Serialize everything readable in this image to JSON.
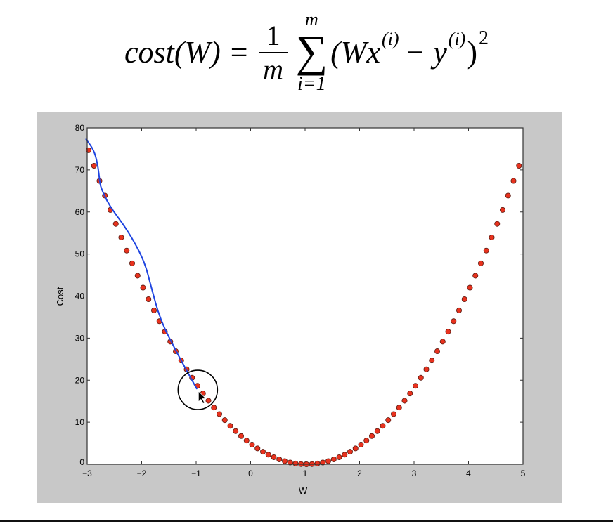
{
  "formula": {
    "lhs": "cost(W) =",
    "frac_num": "1",
    "frac_den": "m",
    "sum_symbol": "∑",
    "sum_upper": "m",
    "sum_lower": "i=1",
    "term_open": "(Wx",
    "sup_i1": "(i)",
    "term_minus": "− y",
    "sup_i2": "(i)",
    "term_close": ")",
    "power": "2"
  },
  "chart_data": {
    "type": "scatter",
    "title": "",
    "xlabel": "W",
    "ylabel": "Cost",
    "xlim": [
      -3,
      5
    ],
    "ylim": [
      0,
      80
    ],
    "xticks": [
      -3,
      -2,
      -1,
      0,
      1,
      2,
      3,
      4,
      5
    ],
    "xtick_labels": [
      "−3",
      "−2",
      "−1",
      "0",
      "1",
      "2",
      "3",
      "4",
      "5"
    ],
    "yticks": [
      0,
      10,
      20,
      30,
      40,
      50,
      60,
      70,
      80
    ],
    "ytick_labels": [
      "0",
      "10",
      "20",
      "30",
      "40",
      "50",
      "60",
      "70",
      "80"
    ],
    "grid": false,
    "marker_color": "#e8321e",
    "x": [
      -3.0,
      -2.9,
      -2.8,
      -2.7,
      -2.6,
      -2.5,
      -2.4,
      -2.3,
      -2.2,
      -2.1,
      -2.0,
      -1.9,
      -1.8,
      -1.7,
      -1.6,
      -1.5,
      -1.4,
      -1.3,
      -1.2,
      -1.1,
      -1.0,
      -0.9,
      -0.8,
      -0.7,
      -0.6,
      -0.5,
      -0.4,
      -0.3,
      -0.2,
      -0.1,
      0.0,
      0.1,
      0.2,
      0.3,
      0.4,
      0.5,
      0.6,
      0.7,
      0.8,
      0.9,
      1.0,
      1.1,
      1.2,
      1.3,
      1.4,
      1.5,
      1.6,
      1.7,
      1.8,
      1.9,
      2.0,
      2.1,
      2.2,
      2.3,
      2.4,
      2.5,
      2.6,
      2.7,
      2.8,
      2.9,
      3.0,
      3.1,
      3.2,
      3.3,
      3.4,
      3.5,
      3.6,
      3.7,
      3.8,
      3.9,
      4.0,
      4.1,
      4.2,
      4.3,
      4.4,
      4.5,
      4.6,
      4.7,
      4.8,
      4.9
    ],
    "y": [
      74.67,
      70.98,
      67.39,
      63.89,
      60.48,
      57.17,
      53.95,
      50.82,
      47.79,
      44.85,
      42.0,
      39.25,
      36.59,
      34.02,
      31.55,
      29.17,
      26.88,
      24.69,
      22.59,
      20.58,
      18.67,
      16.85,
      15.12,
      13.49,
      11.95,
      10.5,
      9.15,
      7.89,
      6.72,
      5.65,
      4.67,
      3.78,
      2.99,
      2.29,
      1.68,
      1.17,
      0.75,
      0.42,
      0.19,
      0.05,
      0.0,
      0.05,
      0.19,
      0.42,
      0.75,
      1.17,
      1.68,
      2.29,
      2.99,
      3.78,
      4.67,
      5.65,
      6.72,
      7.89,
      9.15,
      10.5,
      11.95,
      13.49,
      15.12,
      16.85,
      18.67,
      20.58,
      22.59,
      24.69,
      26.88,
      29.17,
      31.55,
      34.02,
      36.59,
      39.25,
      42.0,
      44.85,
      47.79,
      50.82,
      53.95,
      57.17,
      60.48,
      63.89,
      67.39,
      70.98
    ],
    "annotation": {
      "stroke_color": "#1f45e0",
      "hand_drawn_path": [
        [
          -3.02,
          77.3
        ],
        [
          -2.88,
          74.8
        ],
        [
          -2.81,
          71.6
        ],
        [
          -2.77,
          67.4
        ],
        [
          -2.75,
          65.8
        ],
        [
          -2.6,
          61.6
        ],
        [
          -2.3,
          56.4
        ],
        [
          -2.08,
          51.6
        ],
        [
          -1.93,
          47.4
        ],
        [
          -1.83,
          42.4
        ],
        [
          -1.66,
          34.4
        ],
        [
          -1.37,
          26.9
        ],
        [
          -0.99,
          18.0
        ]
      ],
      "circle_center": [
        -0.97,
        17.7
      ]
    }
  }
}
